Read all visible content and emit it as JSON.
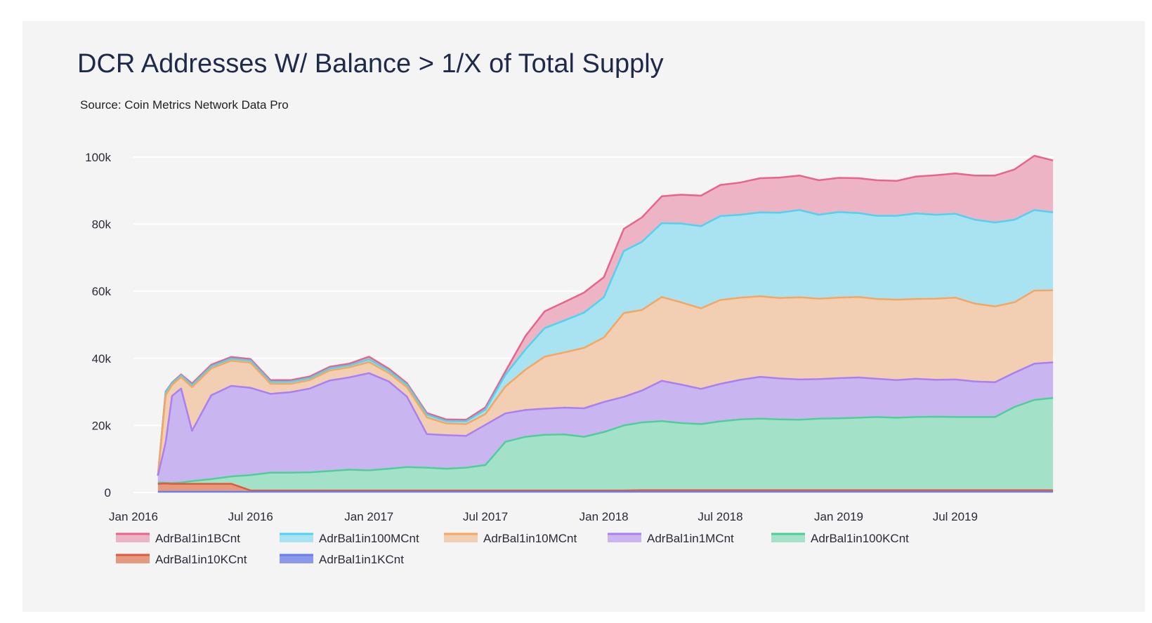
{
  "chart_data": {
    "type": "area",
    "stacked": true,
    "title": "DCR Addresses W/ Balance > 1/X of Total Supply",
    "subtitle": "Source: Coin Metrics Network Data Pro",
    "xlabel": "",
    "ylabel": "",
    "ylim": [
      0,
      105000
    ],
    "xlim": [
      "2016-01-01",
      "2019-12-01"
    ],
    "grid": true,
    "legend_position": "bottom",
    "y_ticks": [
      {
        "value": 0,
        "label": "0"
      },
      {
        "value": 20000,
        "label": "20k"
      },
      {
        "value": 40000,
        "label": "40k"
      },
      {
        "value": 60000,
        "label": "60k"
      },
      {
        "value": 80000,
        "label": "80k"
      },
      {
        "value": 100000,
        "label": "100k"
      }
    ],
    "x_ticks": [
      {
        "value": "2016-01-01",
        "label": "Jan 2016"
      },
      {
        "value": "2016-07-01",
        "label": "Jul 2016"
      },
      {
        "value": "2017-01-01",
        "label": "Jan 2017"
      },
      {
        "value": "2017-07-01",
        "label": "Jul 2017"
      },
      {
        "value": "2018-01-01",
        "label": "Jan 2018"
      },
      {
        "value": "2018-07-01",
        "label": "Jul 2018"
      },
      {
        "value": "2019-01-01",
        "label": "Jan 2019"
      },
      {
        "value": "2019-07-01",
        "label": "Jul 2019"
      }
    ],
    "x": [
      "2016-02-08",
      "2016-02-20",
      "2016-03-01",
      "2016-03-15",
      "2016-04-01",
      "2016-05-01",
      "2016-06-01",
      "2016-07-01",
      "2016-08-01",
      "2016-09-01",
      "2016-10-01",
      "2016-11-01",
      "2016-12-01",
      "2017-01-01",
      "2017-02-01",
      "2017-03-01",
      "2017-04-01",
      "2017-05-01",
      "2017-06-01",
      "2017-07-01",
      "2017-08-01",
      "2017-09-01",
      "2017-10-01",
      "2017-11-01",
      "2017-12-01",
      "2018-01-01",
      "2018-02-01",
      "2018-03-01",
      "2018-04-01",
      "2018-05-01",
      "2018-06-01",
      "2018-07-01",
      "2018-08-01",
      "2018-09-01",
      "2018-10-01",
      "2018-11-01",
      "2018-12-01",
      "2019-01-01",
      "2019-02-01",
      "2019-03-01",
      "2019-04-01",
      "2019-05-01",
      "2019-06-01",
      "2019-07-01",
      "2019-08-01",
      "2019-09-01",
      "2019-10-01",
      "2019-11-01",
      "2019-11-30"
    ],
    "series": [
      {
        "name": "AdrBal1in1KCnt",
        "color": "#6b7fe8",
        "fill": "#8a99ee",
        "values": [
          200,
          200,
          200,
          200,
          200,
          200,
          200,
          200,
          200,
          200,
          200,
          200,
          200,
          200,
          200,
          200,
          200,
          200,
          200,
          200,
          200,
          200,
          200,
          200,
          200,
          200,
          200,
          200,
          200,
          200,
          200,
          200,
          200,
          200,
          200,
          200,
          200,
          200,
          200,
          200,
          200,
          200,
          200,
          200,
          200,
          200,
          200,
          200,
          200
        ]
      },
      {
        "name": "AdrBal1in10KCnt",
        "color": "#e05a3a",
        "fill": "#e59a80",
        "values": [
          2400,
          2500,
          2400,
          2400,
          2400,
          2400,
          2400,
          400,
          400,
          400,
          400,
          400,
          400,
          400,
          400,
          400,
          400,
          400,
          400,
          400,
          400,
          400,
          400,
          400,
          400,
          400,
          400,
          500,
          500,
          500,
          500,
          500,
          500,
          500,
          500,
          500,
          500,
          500,
          500,
          500,
          500,
          500,
          500,
          500,
          500,
          500,
          500,
          500,
          500
        ]
      },
      {
        "name": "AdrBal1in100KCnt",
        "color": "#4fcf98",
        "fill": "#a3e2c9",
        "values": [
          400,
          200,
          200,
          400,
          800,
          1400,
          2200,
          4600,
          5300,
          5300,
          5400,
          5800,
          6200,
          6000,
          6500,
          7000,
          6800,
          6500,
          6800,
          7600,
          14500,
          16000,
          16600,
          16700,
          16000,
          17400,
          19400,
          20200,
          20600,
          20000,
          19700,
          20500,
          21100,
          21300,
          21100,
          21000,
          21300,
          21400,
          21600,
          21800,
          21600,
          21800,
          21900,
          21800,
          21800,
          21800,
          24800,
          26900,
          27500
        ]
      },
      {
        "name": "AdrBal1in1MCnt",
        "color": "#a97ff2",
        "fill": "#c9b6f1",
        "values": [
          2000,
          12000,
          26000,
          28000,
          15000,
          25000,
          27000,
          26000,
          23500,
          24000,
          25000,
          27000,
          27500,
          29000,
          26000,
          21000,
          10000,
          10000,
          9500,
          12000,
          8500,
          8000,
          7800,
          8000,
          8500,
          9000,
          8500,
          9500,
          12000,
          11500,
          10500,
          11200,
          11800,
          12500,
          12200,
          12000,
          11800,
          12000,
          12000,
          11400,
          11200,
          11400,
          11000,
          11200,
          10600,
          10400,
          10200,
          10800,
          10600
        ]
      },
      {
        "name": "AdrBal1in10MCnt",
        "color": "#f4a662",
        "fill": "#f2cfb3",
        "values": [
          0,
          14000,
          3300,
          3400,
          13000,
          8000,
          7500,
          7500,
          3000,
          2500,
          2500,
          3000,
          3000,
          3300,
          2500,
          2800,
          5000,
          3500,
          3500,
          3200,
          8000,
          12000,
          15500,
          16500,
          18000,
          19200,
          25000,
          24000,
          25000,
          24500,
          24000,
          25000,
          24500,
          24000,
          24000,
          24500,
          24000,
          24000,
          24000,
          23800,
          24000,
          23800,
          24200,
          24400,
          23200,
          22600,
          21000,
          21800,
          21500
        ]
      },
      {
        "name": "AdrBal1in100MCnt",
        "color": "#4ed3f0",
        "fill": "#a9e3f1",
        "values": [
          0,
          1000,
          500,
          500,
          600,
          600,
          600,
          600,
          600,
          600,
          600,
          600,
          600,
          800,
          700,
          700,
          800,
          700,
          800,
          1300,
          3500,
          6000,
          8500,
          9500,
          10500,
          12000,
          18500,
          20300,
          22000,
          23500,
          24500,
          25000,
          24700,
          25000,
          25400,
          26000,
          25000,
          25500,
          25000,
          24800,
          25000,
          25500,
          25000,
          25000,
          25000,
          25000,
          24600,
          24000,
          23200
        ]
      },
      {
        "name": "AdrBal1in1BCnt",
        "color": "#e9648c",
        "fill": "#edb4c6",
        "values": [
          0,
          200,
          200,
          300,
          500,
          500,
          500,
          500,
          500,
          500,
          500,
          500,
          500,
          800,
          600,
          500,
          500,
          500,
          500,
          700,
          1000,
          4000,
          5000,
          5500,
          6000,
          6000,
          6600,
          7300,
          8000,
          8600,
          9100,
          9300,
          9600,
          10200,
          10500,
          10300,
          10300,
          10200,
          10400,
          10600,
          10400,
          11000,
          11800,
          12000,
          13200,
          14000,
          15000,
          16200,
          15500
        ]
      }
    ]
  }
}
